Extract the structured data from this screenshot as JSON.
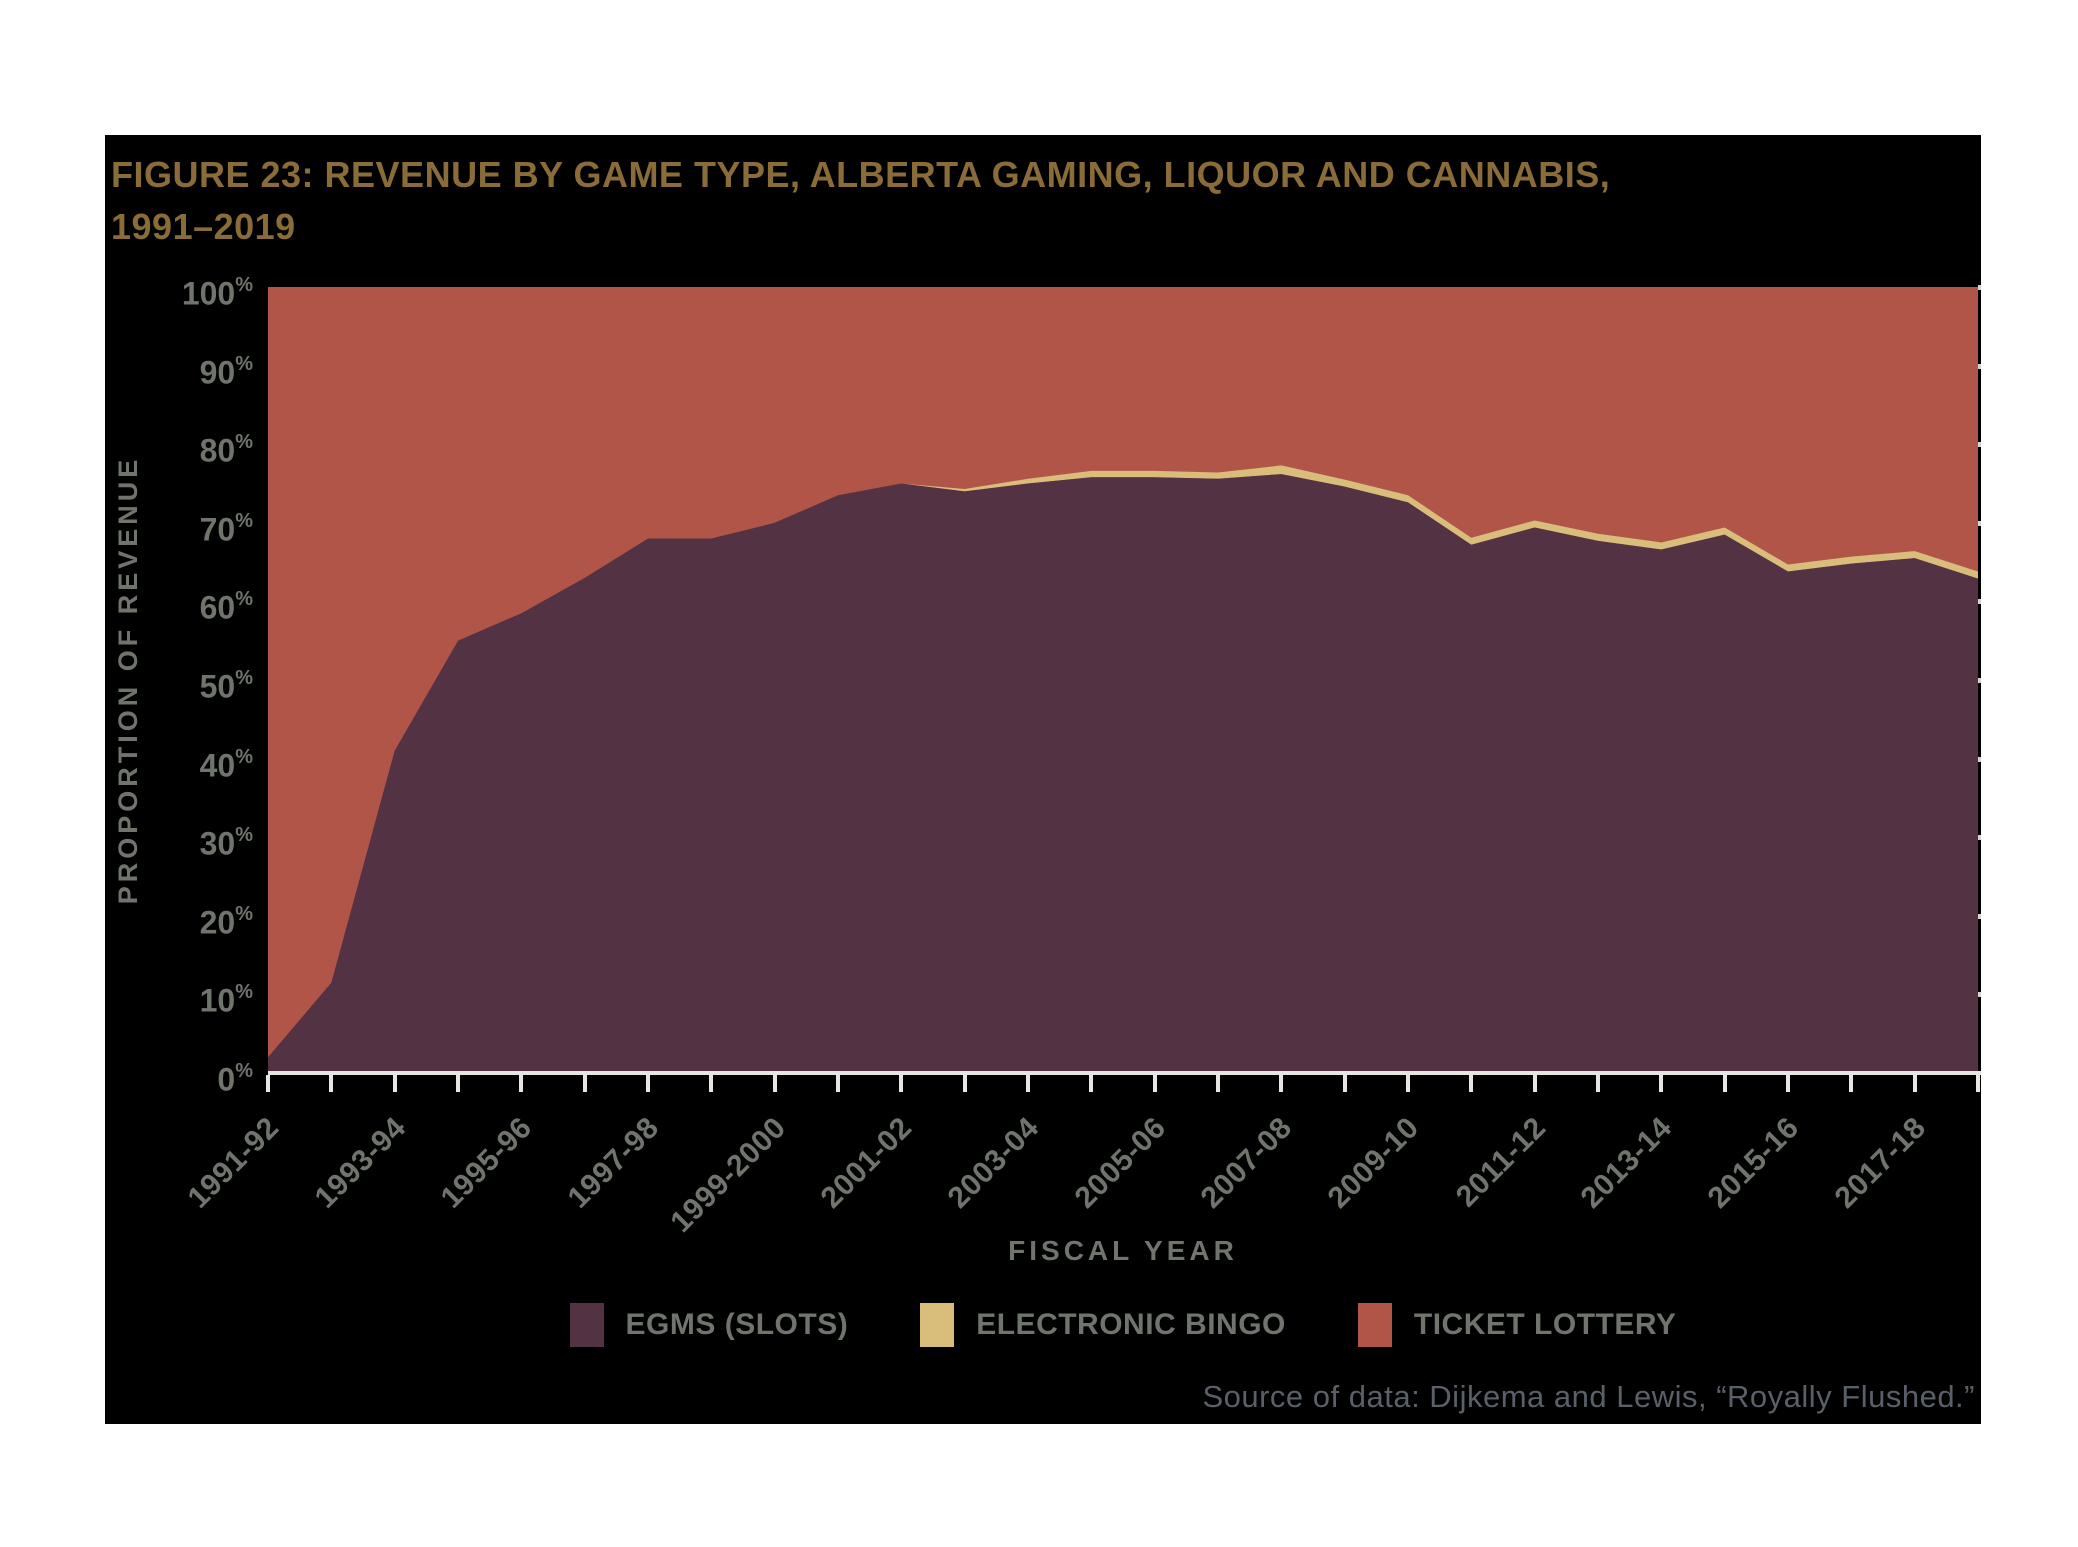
{
  "title": {
    "line1": "FIGURE 23: REVENUE BY GAME TYPE, ALBERTA GAMING, LIQUOR AND CANNABIS,",
    "line2": "1991–2019"
  },
  "axes": {
    "y_title": "PROPORTION OF REVENUE",
    "x_title": "FISCAL YEAR",
    "ytick_suffix": "%"
  },
  "legend": [
    {
      "label": "EGMS (SLOTS)",
      "color": "#533243"
    },
    {
      "label": "ELECTRONIC BINGO",
      "color": "#d9bd7a"
    },
    {
      "label": "TICKET LOTTERY",
      "color": "#b15548"
    }
  ],
  "source_note": "Source of data: Dijkema and Lewis, “Royally Flushed.”",
  "colors": {
    "panel_background": "#000000",
    "page_background": "#ffffff",
    "title_text": "#8a6c39",
    "axis_text": "#6f756d",
    "axis_line": "#e9e5e2",
    "source_text": "#59606a",
    "egms": "#533243",
    "electronic_bingo": "#d9bd7a",
    "ticket_lottery": "#b15548"
  },
  "chart_data": {
    "type": "area",
    "stacked": true,
    "normalized_to_100": true,
    "title": "Revenue by game type, Alberta Gaming, Liquor and Cannabis, 1991–2019",
    "xlabel": "FISCAL YEAR",
    "ylabel": "PROPORTION OF REVENUE",
    "ylim": [
      0,
      100
    ],
    "yticks": [
      0,
      10,
      20,
      30,
      40,
      50,
      60,
      70,
      80,
      90,
      100
    ],
    "grid": false,
    "legend_position": "bottom",
    "x": [
      "1991-92",
      "1992-93",
      "1993-94",
      "1994-95",
      "1995-96",
      "1996-97",
      "1997-98",
      "1998-99",
      "1999-2000",
      "2000-01",
      "2001-02",
      "2002-03",
      "2003-04",
      "2004-05",
      "2005-06",
      "2006-07",
      "2007-08",
      "2008-09",
      "2009-10",
      "2010-11",
      "2011-12",
      "2012-13",
      "2013-14",
      "2014-15",
      "2015-16",
      "2016-17",
      "2017-18",
      "2018-19"
    ],
    "x_labeled_every": 2,
    "series": [
      {
        "name": "EGMS (SLOTS)",
        "color": "#533243",
        "values": [
          2,
          11.5,
          41,
          55,
          58.5,
          63,
          68,
          68,
          70,
          73.5,
          75,
          74,
          75,
          75.8,
          75.8,
          75.6,
          76.2,
          74.6,
          72.6,
          67.2,
          69.4,
          67.7,
          66.6,
          68.5,
          63.8,
          64.8,
          65.5,
          62.9
        ]
      },
      {
        "name": "ELECTRONIC BINGO",
        "color": "#d9bd7a",
        "values": [
          0,
          0,
          0,
          0,
          0,
          0,
          0,
          0,
          0,
          0,
          0,
          0.3,
          0.6,
          0.8,
          0.8,
          0.8,
          1.1,
          0.9,
          0.9,
          0.9,
          0.9,
          0.9,
          0.9,
          0.9,
          0.9,
          0.9,
          0.9,
          0.9
        ]
      },
      {
        "name": "TICKET LOTTERY",
        "color": "#b15548",
        "values": [
          98,
          88.5,
          59,
          45,
          41.5,
          37,
          32,
          32,
          30,
          26.5,
          25,
          25.7,
          24.4,
          23.4,
          23.4,
          23.6,
          22.7,
          24.5,
          26.5,
          31.9,
          29.7,
          31.4,
          32.5,
          30.6,
          35.3,
          34.3,
          33.6,
          36.2
        ]
      }
    ]
  }
}
